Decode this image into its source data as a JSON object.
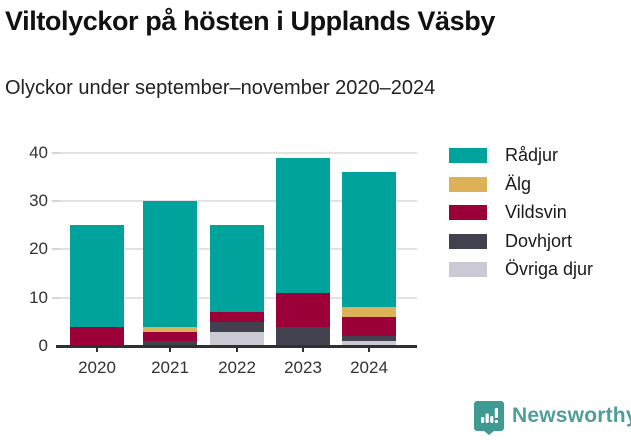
{
  "header": {
    "title": "Viltolyckor på hösten i Upplands Väsby",
    "subtitle": "Olyckor under september–november 2020–2024"
  },
  "chart_data": {
    "type": "bar",
    "stacked": true,
    "title": "Viltolyckor på hösten i Upplands Väsby",
    "subtitle": "Olyckor under september–november 2020–2024",
    "categories": [
      "2020",
      "2021",
      "2022",
      "2023",
      "2024"
    ],
    "series": [
      {
        "name": "Rådjur",
        "color": "#00a39b",
        "values": [
          21,
          26,
          18,
          28,
          28
        ]
      },
      {
        "name": "Älg",
        "color": "#ddb157",
        "values": [
          0,
          1,
          0,
          0,
          2
        ]
      },
      {
        "name": "Vildsvin",
        "color": "#9c0039",
        "values": [
          4,
          2,
          2,
          7,
          4
        ]
      },
      {
        "name": "Dovhjort",
        "color": "#42424e",
        "values": [
          0,
          1,
          2,
          4,
          1
        ]
      },
      {
        "name": "Övriga djur",
        "color": "#cac9d4",
        "values": [
          0,
          0,
          3,
          0,
          1
        ]
      }
    ],
    "totals": [
      25,
      30,
      25,
      39,
      36
    ],
    "stack_order_bottom_to_top": [
      "Övriga djur",
      "Dovhjort",
      "Vildsvin",
      "Älg",
      "Rådjur"
    ],
    "xlabel": "",
    "ylabel": "",
    "y_ticks": [
      0,
      10,
      20,
      30,
      40
    ],
    "ylim": [
      0,
      40
    ],
    "grid": "horizontal",
    "legend_position": "right",
    "axis_color": "#303030",
    "gridline_color": "#e2e2e2"
  },
  "footer": {
    "brand_name": "Newsworthy",
    "logo_icon": "bar-chart-speech-bubble"
  }
}
